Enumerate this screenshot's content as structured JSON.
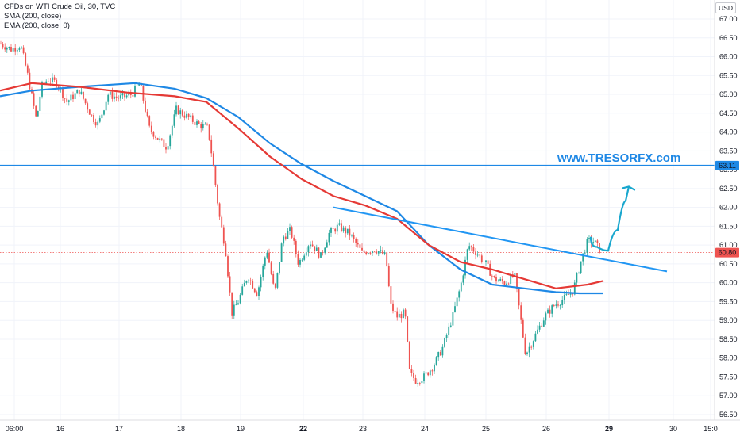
{
  "legend": {
    "symbol": "CFDs on WTI Crude Oil, 30, TVC",
    "sma": "SMA (200, close)",
    "ema": "EMA (200, close, 0)"
  },
  "unit": "USD",
  "watermark": "www.TRESORFX.com",
  "colors": {
    "up": "#26a69a",
    "down": "#ef5350",
    "sma": "#1e88e5",
    "ema": "#e53935",
    "trendline": "#2196f3",
    "hline": "#1e88e5",
    "current": "#ef5350",
    "forecast": "#19a7ce"
  },
  "chart_data": {
    "type": "candlestick",
    "y_ticks": [
      "67.00",
      "66.50",
      "66.00",
      "65.50",
      "65.00",
      "64.50",
      "64.00",
      "63.50",
      "63.00",
      "62.50",
      "62.00",
      "61.50",
      "61.00",
      "60.50",
      "60.00",
      "59.50",
      "59.00",
      "58.50",
      "58.00",
      "57.50",
      "57.00",
      "56.50"
    ],
    "x_ticks": [
      "06:00",
      "16",
      "17",
      "18",
      "19",
      "22",
      "23",
      "24",
      "25",
      "26",
      "29",
      "30",
      "15:0"
    ],
    "ylim": [
      56.3,
      67.2
    ],
    "horizontal_line": {
      "value": 63.11,
      "label": "63.11"
    },
    "current_price": {
      "value": 60.8,
      "label": "60.80"
    },
    "price_path": [
      [
        0,
        66.35
      ],
      [
        14,
        66.2
      ],
      [
        26,
        66.3
      ],
      [
        34,
        65.6
      ],
      [
        46,
        64.3
      ],
      [
        52,
        65.2
      ],
      [
        60,
        65.4
      ],
      [
        72,
        65.3
      ],
      [
        84,
        64.8
      ],
      [
        100,
        65.1
      ],
      [
        116,
        64.4
      ],
      [
        124,
        64.2
      ],
      [
        136,
        65.0
      ],
      [
        150,
        64.9
      ],
      [
        166,
        65.0
      ],
      [
        176,
        65.3
      ],
      [
        188,
        64.1
      ],
      [
        200,
        63.8
      ],
      [
        210,
        63.6
      ],
      [
        222,
        64.6
      ],
      [
        236,
        64.4
      ],
      [
        250,
        64.2
      ],
      [
        262,
        64.1
      ],
      [
        268,
        63.2
      ],
      [
        276,
        61.8
      ],
      [
        284,
        60.9
      ],
      [
        292,
        59.2
      ],
      [
        300,
        59.5
      ],
      [
        312,
        60.2
      ],
      [
        324,
        59.7
      ],
      [
        336,
        60.9
      ],
      [
        346,
        59.7
      ],
      [
        356,
        61.2
      ],
      [
        366,
        61.4
      ],
      [
        376,
        60.5
      ],
      [
        390,
        61.1
      ],
      [
        404,
        60.7
      ],
      [
        414,
        61.3
      ],
      [
        426,
        61.5
      ],
      [
        440,
        61.3
      ],
      [
        456,
        60.8
      ],
      [
        472,
        60.9
      ],
      [
        486,
        60.7
      ],
      [
        492,
        59.4
      ],
      [
        500,
        59.1
      ],
      [
        510,
        59.2
      ],
      [
        516,
        57.6
      ],
      [
        524,
        57.4
      ],
      [
        534,
        57.5
      ],
      [
        546,
        57.8
      ],
      [
        558,
        58.3
      ],
      [
        570,
        59.1
      ],
      [
        580,
        59.9
      ],
      [
        590,
        61.0
      ],
      [
        600,
        60.8
      ],
      [
        612,
        60.5
      ],
      [
        622,
        60.1
      ],
      [
        636,
        60.0
      ],
      [
        648,
        60.2
      ],
      [
        656,
        59.0
      ],
      [
        662,
        58.1
      ],
      [
        674,
        58.6
      ],
      [
        686,
        59.1
      ],
      [
        698,
        59.4
      ],
      [
        712,
        59.6
      ],
      [
        722,
        59.8
      ],
      [
        732,
        60.6
      ],
      [
        740,
        61.1
      ],
      [
        748,
        61.1
      ],
      [
        756,
        60.85
      ]
    ],
    "sma_200": [
      [
        0,
        64.95
      ],
      [
        40,
        65.1
      ],
      [
        100,
        65.2
      ],
      [
        170,
        65.3
      ],
      [
        220,
        65.15
      ],
      [
        260,
        64.9
      ],
      [
        300,
        64.4
      ],
      [
        340,
        63.7
      ],
      [
        380,
        63.15
      ],
      [
        420,
        62.7
      ],
      [
        460,
        62.3
      ],
      [
        500,
        61.9
      ],
      [
        540,
        61.0
      ],
      [
        580,
        60.35
      ],
      [
        620,
        59.95
      ],
      [
        660,
        59.85
      ],
      [
        700,
        59.75
      ],
      [
        730,
        59.72
      ],
      [
        760,
        59.72
      ]
    ],
    "ema_200": [
      [
        0,
        65.1
      ],
      [
        40,
        65.3
      ],
      [
        100,
        65.2
      ],
      [
        160,
        65.05
      ],
      [
        220,
        64.95
      ],
      [
        260,
        64.8
      ],
      [
        300,
        64.1
      ],
      [
        340,
        63.35
      ],
      [
        380,
        62.75
      ],
      [
        420,
        62.3
      ],
      [
        460,
        62.05
      ],
      [
        500,
        61.7
      ],
      [
        540,
        61.0
      ],
      [
        580,
        60.55
      ],
      [
        620,
        60.35
      ],
      [
        660,
        60.1
      ],
      [
        700,
        59.85
      ],
      [
        740,
        59.95
      ],
      [
        760,
        60.05
      ]
    ],
    "trendline": [
      [
        420,
        62.0
      ],
      [
        840,
        60.3
      ]
    ],
    "forecast_path": [
      [
        744,
        61.2
      ],
      [
        760,
        60.7
      ],
      [
        772,
        61.0
      ],
      [
        784,
        61.8
      ],
      [
        792,
        62.55
      ]
    ]
  }
}
